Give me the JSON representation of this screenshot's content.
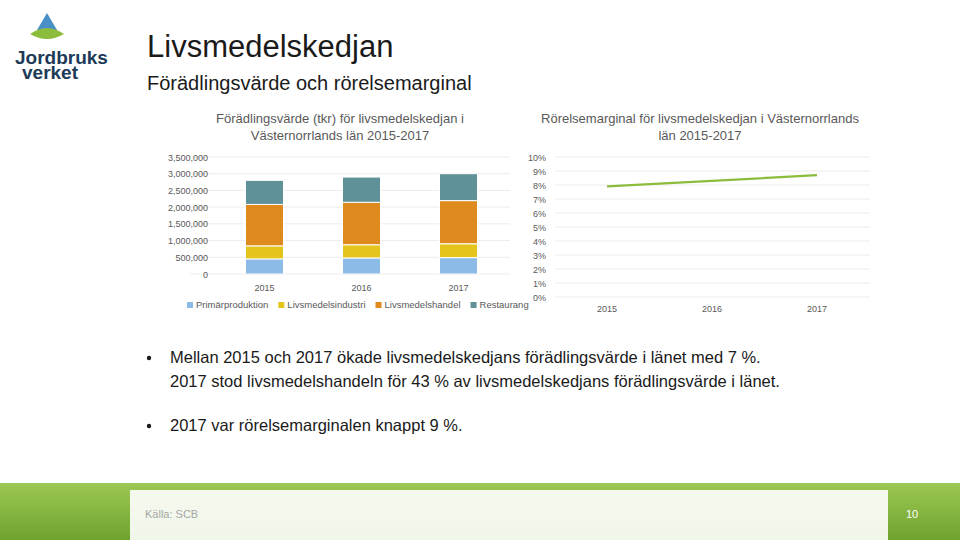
{
  "logo": {
    "lines": [
      "Jordbruks",
      "verket"
    ]
  },
  "header": {
    "title": "Livsmedelskedjan",
    "subtitle": "Förädlingsvärde och rörelsemarginal"
  },
  "chart_data": [
    {
      "type": "bar",
      "stacked": true,
      "title": "Förädlingsvärde (tkr) för livsmedelskedjan i Västernorrlands län 2015-2017",
      "categories": [
        "2015",
        "2016",
        "2017"
      ],
      "series": [
        {
          "name": "Primärproduktion",
          "color": "#8cbbe8",
          "values": [
            452000,
            480000,
            490000
          ]
        },
        {
          "name": "Livsmedelsindustri",
          "color": "#e5c41c",
          "values": [
            390000,
            395000,
            415000
          ]
        },
        {
          "name": "Livsmedelshandel",
          "color": "#df8a1f",
          "values": [
            1240000,
            1270000,
            1290000
          ]
        },
        {
          "name": "Restaurang",
          "color": "#5f9199",
          "values": [
            720000,
            755000,
            805000
          ]
        }
      ],
      "ylim": [
        0,
        3500000
      ],
      "yticks": [
        0,
        {
          "value": 500000,
          "label": "500,000"
        },
        {
          "value": 1000000,
          "label": "1,000,000"
        },
        {
          "value": 1500000,
          "label": "1,500,000"
        },
        {
          "value": 2000000,
          "label": "2,000,000"
        },
        {
          "value": 2500000,
          "label": "2,500,000"
        },
        {
          "value": 3000000,
          "label": "3,000,000"
        },
        {
          "value": 3500000,
          "label": "3,500,000"
        }
      ],
      "grid": true,
      "legend": "bottom"
    },
    {
      "type": "line",
      "title": "Rörelsemarginal för livsmedelskedjan i Västernorrlands län 2015-2017",
      "categories": [
        "2015",
        "2016",
        "2017"
      ],
      "values": [
        7.9,
        8.3,
        8.7
      ],
      "color": "#8cbc3c",
      "ylim": [
        0,
        10
      ],
      "yticks": [
        {
          "value": 0,
          "label": "0%"
        },
        {
          "value": 1,
          "label": "1%"
        },
        {
          "value": 2,
          "label": "2%"
        },
        {
          "value": 3,
          "label": "3%"
        },
        {
          "value": 4,
          "label": "4%"
        },
        {
          "value": 5,
          "label": "5%"
        },
        {
          "value": 6,
          "label": "6%"
        },
        {
          "value": 7,
          "label": "7%"
        },
        {
          "value": 8,
          "label": "8%"
        },
        {
          "value": 9,
          "label": "9%"
        },
        {
          "value": 10,
          "label": "10%"
        }
      ],
      "grid": true
    }
  ],
  "bullets": [
    [
      "Mellan 2015 och 2017 ökade livsmedelskedjans förädlingsvärde i länet med 7 %.",
      "2017 stod livsmedelshandeln för 43 % av livsmedelskedjans förädlingsvärde i länet."
    ],
    [
      "2017 var rörelsemarginalen knappt 9 %."
    ]
  ],
  "footer": {
    "source": "Källa: SCB",
    "page": 10
  }
}
